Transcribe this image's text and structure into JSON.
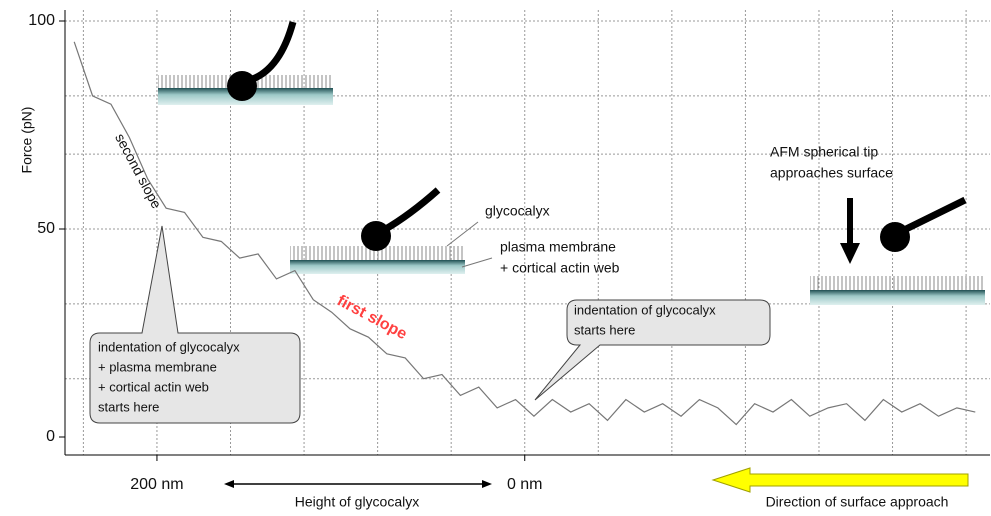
{
  "chart_data": {
    "type": "line",
    "ylabel": "Force (pN)",
    "xlabel": "Height of glycocalyx",
    "x": [
      245,
      235,
      225,
      215,
      205,
      195,
      185,
      175,
      165,
      155,
      145,
      135,
      125,
      115,
      105,
      95,
      85,
      75,
      65,
      55,
      45,
      35,
      25,
      15,
      5,
      -5,
      -15,
      -25,
      -35,
      -45,
      -55,
      -65,
      -75,
      -85,
      -95,
      -105,
      -115,
      -125,
      -135,
      -145,
      -155,
      -165,
      -175,
      -185,
      -195,
      -205,
      -215,
      -225,
      -235,
      -245
    ],
    "values": [
      95,
      82,
      80,
      72,
      62,
      55,
      54,
      48,
      47,
      43,
      44,
      38,
      40,
      33,
      30,
      26,
      24,
      20,
      19,
      14,
      15,
      10,
      12,
      7,
      9,
      5,
      9,
      6,
      8,
      4,
      9,
      6,
      8,
      5,
      9,
      7,
      3,
      8,
      6,
      9,
      5,
      7,
      8,
      4,
      9,
      6,
      8,
      5,
      7,
      6
    ],
    "color": "#777777",
    "xlim": [
      250,
      -253
    ],
    "ylim": [
      0,
      100
    ],
    "xticks": [
      {
        "value": 200,
        "label": "200 nm"
      },
      {
        "value": 0,
        "label": "0 nm"
      }
    ],
    "yticks": [
      0,
      50,
      100
    ],
    "xgrid": [
      240,
      200,
      160,
      120,
      80,
      40,
      0,
      -40,
      -80,
      -120,
      -160,
      -200,
      -240
    ],
    "ygrid": [
      82,
      68,
      50,
      32,
      14,
      100
    ],
    "annotations": {
      "second_slope": "second slope",
      "first_slope": "first slope",
      "glycocalyx": "glycocalyx",
      "membrane": [
        "plasma membrane",
        "+ cortical actin web"
      ],
      "afm": [
        "AFM spherical tip",
        "approaches surface"
      ],
      "callout_left": [
        "indentation of glycocalyx",
        "+ plasma membrane",
        "+ cortical actin web",
        "starts here"
      ],
      "callout_right": [
        "indentation of glycocalyx",
        "starts here"
      ],
      "direction": "Direction of surface approach"
    }
  }
}
